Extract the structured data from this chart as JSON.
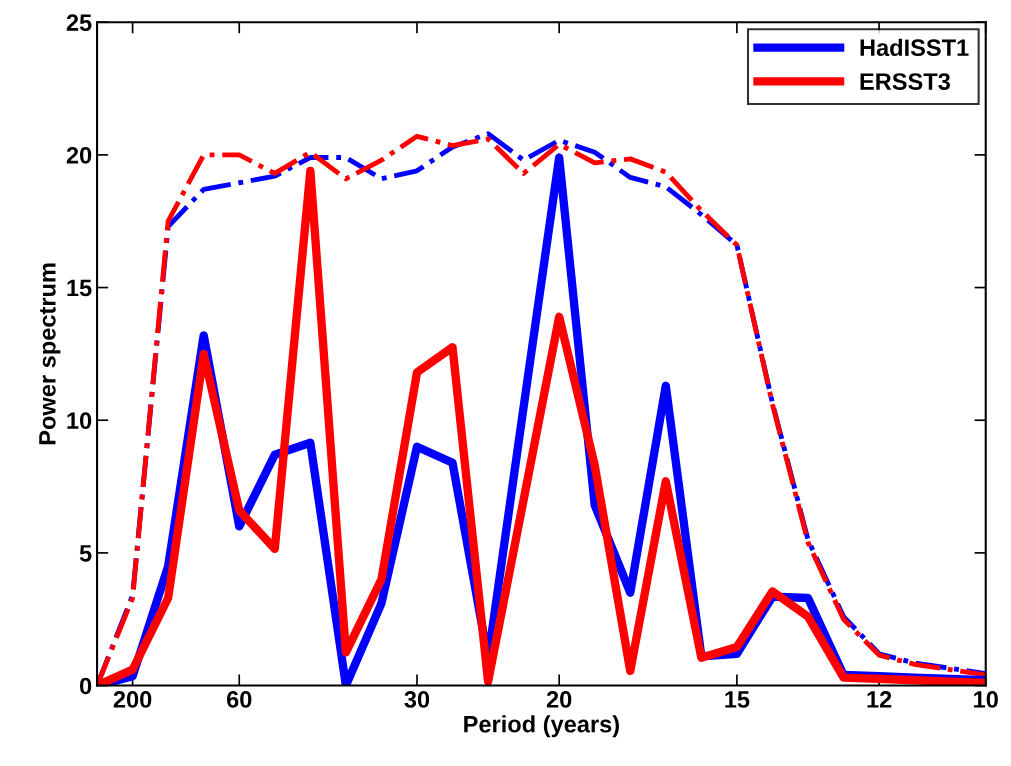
{
  "chart_data": {
    "type": "line",
    "xlabel": "Period (years)",
    "ylabel": "Power spectrum",
    "categories": [
      null,
      "200",
      null,
      null,
      "60",
      null,
      null,
      null,
      null,
      "30",
      null,
      null,
      null,
      "20",
      null,
      null,
      null,
      null,
      "15",
      null,
      null,
      null,
      "12",
      null,
      null,
      "10"
    ],
    "ylim": [
      0,
      25
    ],
    "yticks": [
      0,
      5,
      10,
      15,
      20,
      25
    ],
    "grid": false,
    "legend": "top right",
    "series": [
      {
        "color": "#0000ff",
        "line_style": "dashed",
        "values": [
          0,
          3.4,
          17.3,
          18.7,
          18.95,
          19.2,
          19.9,
          19.9,
          19.1,
          19.4,
          20.3,
          20.8,
          19.8,
          20.55,
          20.1,
          19.15,
          18.8,
          17.75,
          16.6,
          10.65,
          5.5,
          2.6,
          1.2,
          0.85,
          0.65,
          0.45
        ]
      },
      {
        "color": "#ff0000",
        "line_style": "dashed",
        "values": [
          0,
          3.3,
          17.5,
          20.0,
          20.0,
          19.3,
          20.1,
          19.1,
          19.8,
          20.7,
          20.35,
          20.6,
          19.3,
          20.4,
          19.7,
          19.85,
          19.35,
          17.9,
          16.6,
          10.6,
          5.4,
          2.5,
          1.15,
          0.8,
          0.6,
          0.4
        ]
      },
      {
        "name": "HadISST1",
        "color": "#0000ff",
        "line_style": "solid",
        "values": [
          0,
          0.35,
          4.5,
          13.2,
          6.0,
          8.7,
          9.15,
          0,
          3.1,
          9.0,
          8.4,
          1.0,
          10.5,
          19.9,
          6.8,
          3.5,
          11.3,
          1.1,
          1.2,
          3.35,
          3.3,
          0.4,
          0.35,
          0.3,
          0.25,
          0.2
        ]
      },
      {
        "name": "ERSST3",
        "color": "#ff0000",
        "line_style": "solid",
        "values": [
          0,
          0.6,
          3.3,
          12.5,
          6.6,
          5.15,
          19.4,
          1.25,
          4.0,
          11.8,
          12.75,
          0.15,
          7.0,
          13.9,
          8.3,
          0.55,
          7.7,
          1.05,
          1.45,
          3.55,
          2.6,
          0.3,
          0.25,
          0.2,
          0.15,
          0.1
        ]
      }
    ]
  }
}
